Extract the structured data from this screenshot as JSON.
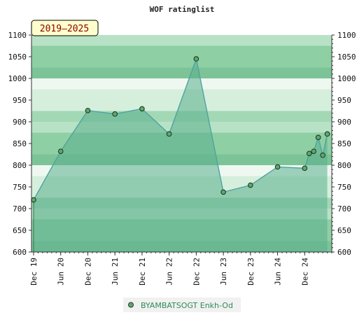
{
  "chart_data": {
    "type": "area",
    "title": "WOF ratinglist",
    "period_badge": "2019–2025",
    "xlabel": "",
    "ylabel": "",
    "ylim": [
      600,
      1100
    ],
    "yticks": [
      600,
      650,
      700,
      750,
      800,
      850,
      900,
      950,
      1000,
      1050,
      1100
    ],
    "xlim": [
      "2019-12",
      "2025-06"
    ],
    "xticks": [
      {
        "label": "Dec 19",
        "date": "2019-12"
      },
      {
        "label": "Jun 20",
        "date": "2020-06"
      },
      {
        "label": "Dec 20",
        "date": "2020-12"
      },
      {
        "label": "Jun 21",
        "date": "2021-06"
      },
      {
        "label": "Dec 21",
        "date": "2021-12"
      },
      {
        "label": "Jun 22",
        "date": "2022-06"
      },
      {
        "label": "Dec 22",
        "date": "2022-12"
      },
      {
        "label": "Jun 23",
        "date": "2023-06"
      },
      {
        "label": "Dec 23",
        "date": "2023-12"
      },
      {
        "label": "Jun 24",
        "date": "2024-06"
      },
      {
        "label": "Dec 24",
        "date": "2024-12"
      }
    ],
    "legend_position": "bottom-center",
    "grid": true,
    "series": [
      {
        "name": "BYAMBATSOGT Enkh-Od",
        "color": "#4fa3a0",
        "fill": "#5aae8c",
        "points": [
          {
            "x": "2019-12",
            "y": 720
          },
          {
            "x": "2020-06",
            "y": 832
          },
          {
            "x": "2020-12",
            "y": 926
          },
          {
            "x": "2021-06",
            "y": 918
          },
          {
            "x": "2021-12",
            "y": 930
          },
          {
            "x": "2022-06",
            "y": 872
          },
          {
            "x": "2022-12",
            "y": 1045
          },
          {
            "x": "2023-06",
            "y": 738
          },
          {
            "x": "2023-12",
            "y": 754
          },
          {
            "x": "2024-06",
            "y": 796
          },
          {
            "x": "2024-12",
            "y": 793
          },
          {
            "x": "2025-01",
            "y": 827
          },
          {
            "x": "2025-02",
            "y": 832
          },
          {
            "x": "2025-03",
            "y": 864
          },
          {
            "x": "2025-04",
            "y": 823
          },
          {
            "x": "2025-05",
            "y": 872
          }
        ]
      }
    ]
  }
}
